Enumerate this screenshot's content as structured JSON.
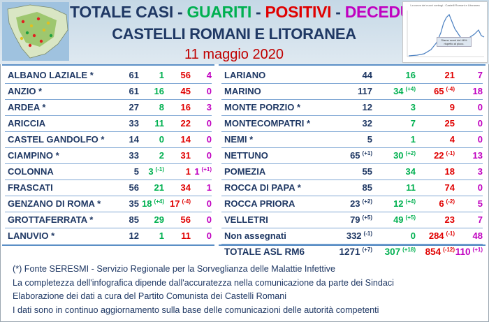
{
  "header": {
    "title_parts": [
      {
        "text": "TOTALE CASI",
        "color": "#1f3864"
      },
      {
        "text": " - ",
        "color": "#1f3864"
      },
      {
        "text": "GUARITI",
        "color": "#00b050"
      },
      {
        "text": " - ",
        "color": "#1f3864"
      },
      {
        "text": "POSITIVI",
        "color": "#e00000"
      },
      {
        "text": " - ",
        "color": "#1f3864"
      },
      {
        "text": "DECEDUTI",
        "color": "#c000c0"
      }
    ],
    "subtitle": "CASTELLI ROMANI E LITORANEA",
    "date": "11 maggio 2020",
    "mini_chart_title": "La curva dei nuovi contagi - Castelli Romani e Litoranea",
    "mini_chart_note": "Siamo scesi del 46% rispetto al picco."
  },
  "left_rows": [
    {
      "name": "ALBANO LAZIALE *",
      "totale": "61",
      "guariti": "1",
      "positivi": "56",
      "deceduti": "4"
    },
    {
      "name": "ANZIO *",
      "totale": "61",
      "guariti": "16",
      "positivi": "45",
      "deceduti": "0"
    },
    {
      "name": "ARDEA *",
      "totale": "27",
      "guariti": "8",
      "positivi": "16",
      "deceduti": "3"
    },
    {
      "name": "ARICCIA",
      "totale": "33",
      "guariti": "11",
      "positivi": "22",
      "deceduti": "0"
    },
    {
      "name": "CASTEL GANDOLFO *",
      "totale": "14",
      "guariti": "0",
      "positivi": "14",
      "deceduti": "0"
    },
    {
      "name": "CIAMPINO *",
      "totale": "33",
      "guariti": "2",
      "positivi": "31",
      "deceduti": "0"
    },
    {
      "name": "COLONNA",
      "totale": "5",
      "guariti": "3",
      "guariti_delta": "(-1)",
      "positivi": "1",
      "deceduti": "1",
      "deceduti_delta": "(+1)"
    },
    {
      "name": "FRASCATI",
      "totale": "56",
      "guariti": "21",
      "positivi": "34",
      "deceduti": "1"
    },
    {
      "name": "GENZANO DI ROMA *",
      "totale": "35",
      "guariti": "18",
      "guariti_delta": "(+4)",
      "positivi": "17",
      "positivi_delta": "(-4)",
      "deceduti": "0"
    },
    {
      "name": "GROTTAFERRATA *",
      "totale": "85",
      "guariti": "29",
      "positivi": "56",
      "deceduti": "0"
    },
    {
      "name": "LANUVIO *",
      "totale": "12",
      "guariti": "1",
      "positivi": "11",
      "deceduti": "0"
    }
  ],
  "right_rows": [
    {
      "name": "LARIANO",
      "totale": "44",
      "guariti": "16",
      "positivi": "21",
      "deceduti": "7"
    },
    {
      "name": "MARINO",
      "totale": "117",
      "guariti": "34",
      "guariti_delta": "(+4)",
      "positivi": "65",
      "positivi_delta": "(-4)",
      "deceduti": "18"
    },
    {
      "name": "MONTE PORZIO *",
      "totale": "12",
      "guariti": "3",
      "positivi": "9",
      "deceduti": "0"
    },
    {
      "name": "MONTECOMPATRI *",
      "totale": "32",
      "guariti": "7",
      "positivi": "25",
      "deceduti": "0"
    },
    {
      "name": "NEMI *",
      "totale": "5",
      "guariti": "1",
      "positivi": "4",
      "deceduti": "0"
    },
    {
      "name": "NETTUNO",
      "totale": "65",
      "totale_delta": "(+1)",
      "guariti": "30",
      "guariti_delta": "(+2)",
      "positivi": "22",
      "positivi_delta": "(-1)",
      "deceduti": "13"
    },
    {
      "name": "POMEZIA",
      "totale": "55",
      "guariti": "34",
      "positivi": "18",
      "deceduti": "3"
    },
    {
      "name": "ROCCA DI PAPA *",
      "totale": "85",
      "guariti": "11",
      "positivi": "74",
      "deceduti": "0"
    },
    {
      "name": "ROCCA PRIORA",
      "totale": "23",
      "totale_delta": "(+2)",
      "guariti": "12",
      "guariti_delta": "(+4)",
      "positivi": "6",
      "positivi_delta": "(-2)",
      "deceduti": "5"
    },
    {
      "name": "VELLETRI",
      "totale": "79",
      "totale_delta": "(+5)",
      "guariti": "49",
      "guariti_delta": "(+5)",
      "positivi": "23",
      "deceduti": "7"
    },
    {
      "name": "Non assegnati",
      "totale": "332",
      "totale_delta": "(-1)",
      "guariti": "0",
      "positivi": "284",
      "positivi_delta": "(-1)",
      "deceduti": "48"
    }
  ],
  "total_row": {
    "name": "TOTALE ASL RM6",
    "totale": "1271",
    "totale_delta": "(+7)",
    "guariti": "307",
    "guariti_delta": "(+18)",
    "positivi": "854",
    "positivi_delta": "(-12)",
    "deceduti": "110",
    "deceduti_delta": "(+1)"
  },
  "footer": [
    "(*) Fonte SERESMI - Servizio Regionale per la Sorveglianza delle Malattie Infettive",
    "La completezza dell'infografica dipende dall'accuratezza nella comunicazione da parte dei Sindaci",
    "Elaborazione dei dati a cura del Partito Comunista dei Castelli Romani",
    "I dati sono in continuo aggiornamento sulla base delle comunicazioni delle autorità competenti"
  ],
  "colors": {
    "accent_blue": "#1f3864",
    "guariti": "#00b050",
    "positivi": "#e00000",
    "deceduti": "#c000c0",
    "rule": "#5b8fc6"
  }
}
